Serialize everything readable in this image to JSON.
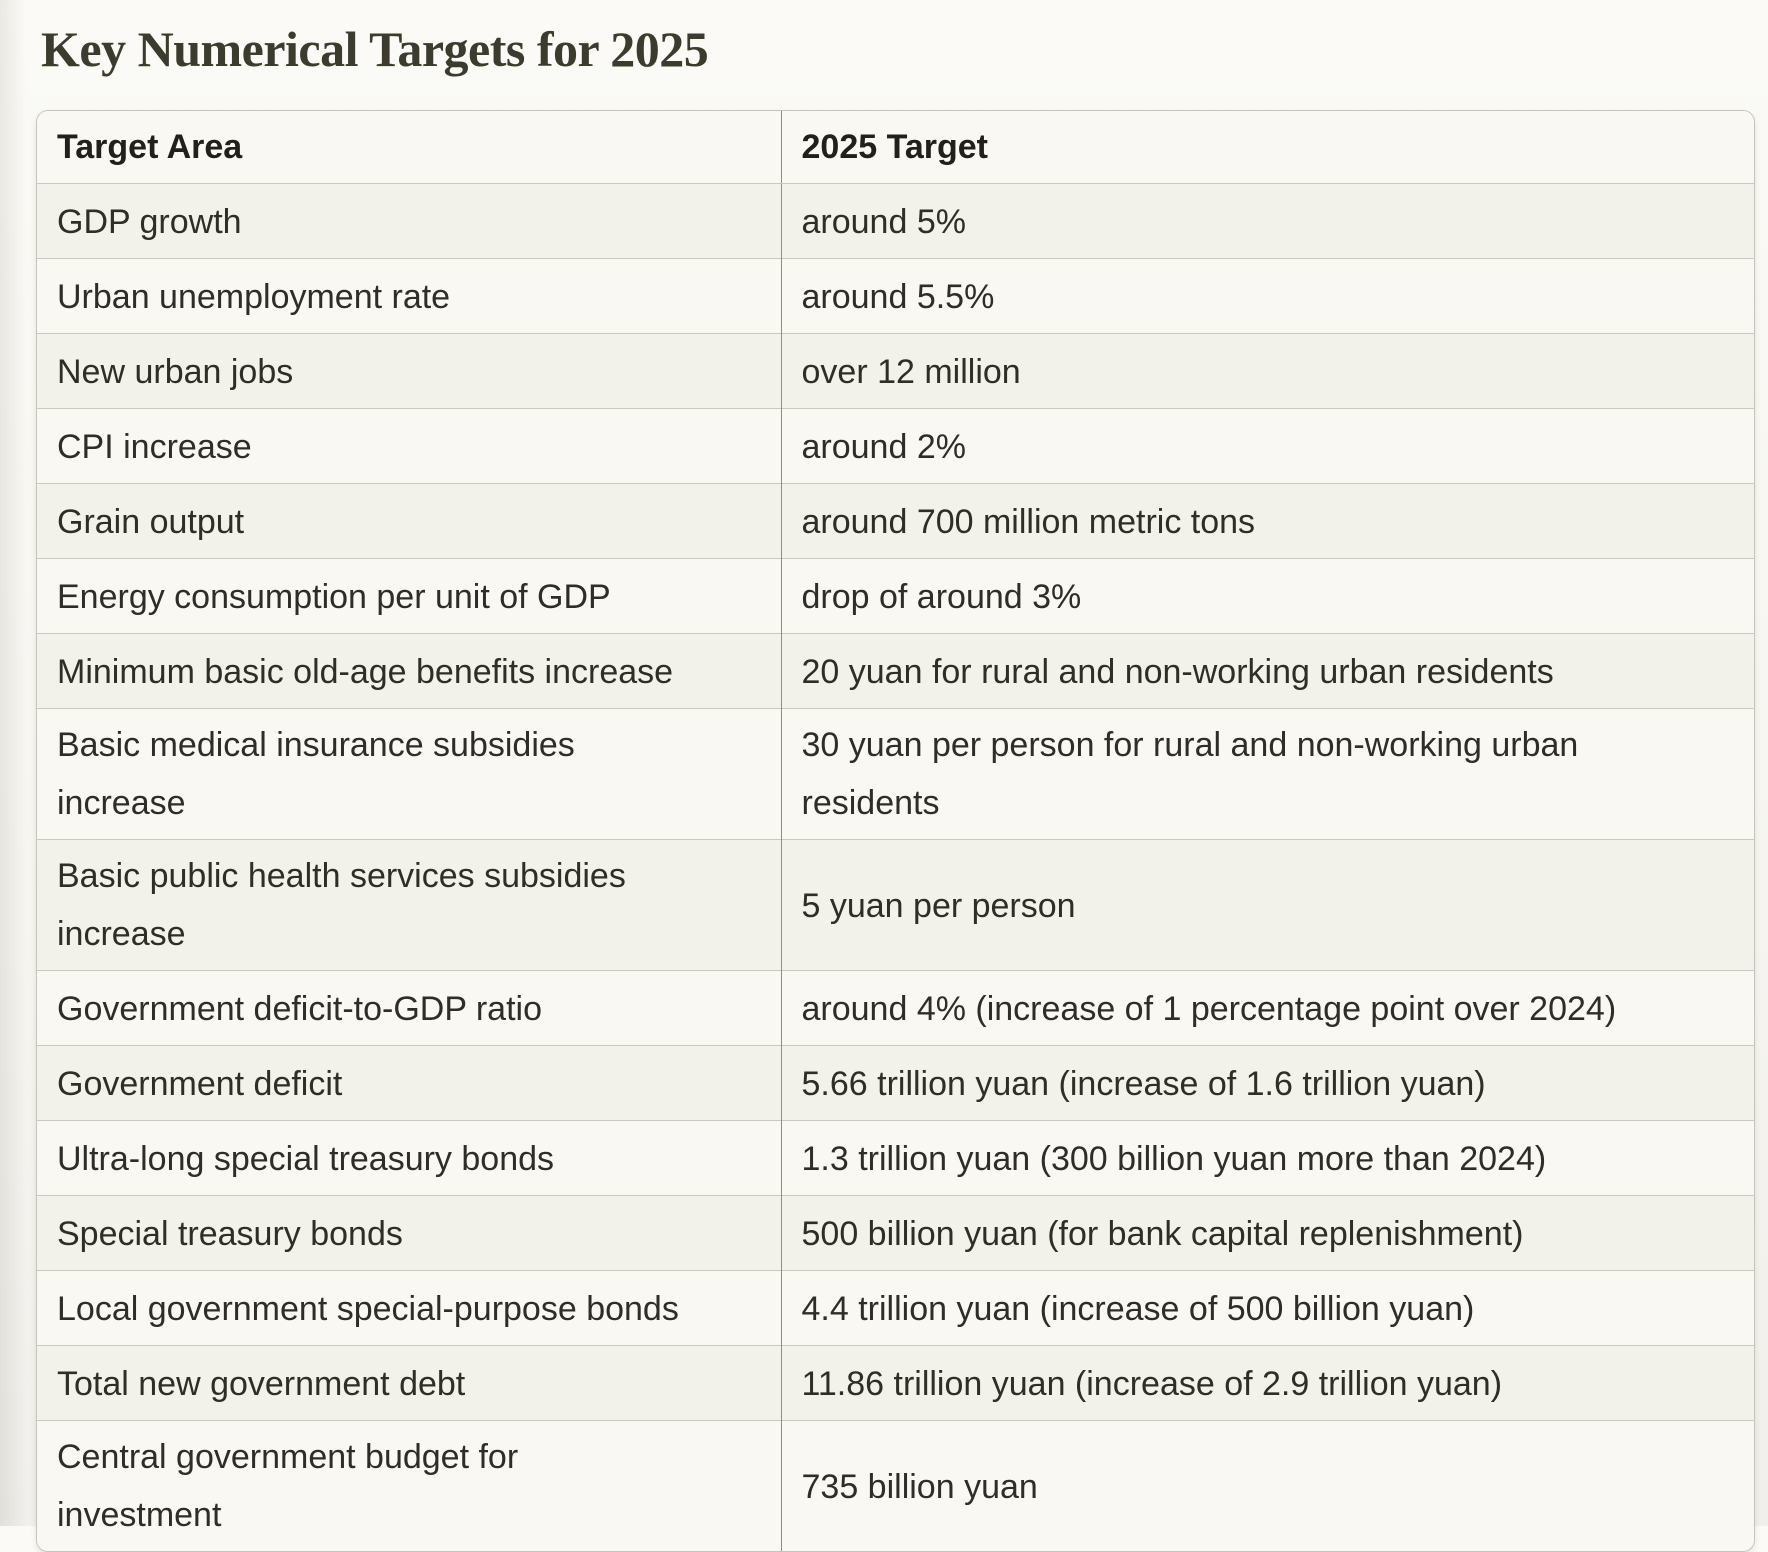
{
  "page": {
    "title": "Key Numerical Targets for 2025"
  },
  "table": {
    "headers": [
      "Target Area",
      "2025 Target"
    ],
    "rows": [
      {
        "area": "GDP growth",
        "target": "around 5%"
      },
      {
        "area": "Urban unemployment rate",
        "target": "around 5.5%"
      },
      {
        "area": "New urban jobs",
        "target": "over 12 million"
      },
      {
        "area": "CPI increase",
        "target": "around 2%"
      },
      {
        "area": "Grain output",
        "target": "around 700 million metric tons"
      },
      {
        "area": "Energy consumption per unit of GDP",
        "target": "drop of around 3%"
      },
      {
        "area": "Minimum basic old-age benefits increase",
        "target": "20 yuan for rural and non-working urban residents"
      },
      {
        "area": "Basic medical insurance subsidies increase",
        "target": "30 yuan per person for rural and non-working urban residents"
      },
      {
        "area": "Basic public health services subsidies increase",
        "target": "5 yuan per person"
      },
      {
        "area": "Government deficit-to-GDP ratio",
        "target": "around 4% (increase of 1 percentage point over 2024)"
      },
      {
        "area": "Government deficit",
        "target": "5.66 trillion yuan (increase of 1.6 trillion yuan)"
      },
      {
        "area": "Ultra-long special treasury bonds",
        "target": "1.3 trillion yuan (300 billion yuan more than 2024)"
      },
      {
        "area": "Special treasury bonds",
        "target": "500 billion yuan (for bank capital replenishment)"
      },
      {
        "area": "Local government special-purpose bonds",
        "target": "4.4 trillion yuan (increase of 500 billion yuan)"
      },
      {
        "area": "Total new government debt",
        "target": "11.86 trillion yuan (increase of 2.9 trillion yuan)"
      },
      {
        "area": "Central government budget for investment",
        "target": "735 billion yuan"
      }
    ]
  },
  "colors": {
    "page_background": "#f6f5f0",
    "row_dark": "#f2f1ea",
    "row_light": "#f9f8f3",
    "border_horizontal": "#c9c8bf",
    "border_vertical": "#8f8e84",
    "border_outer": "#c6c5bd",
    "text": "#2e2d27",
    "title": "#3c3b2d"
  }
}
